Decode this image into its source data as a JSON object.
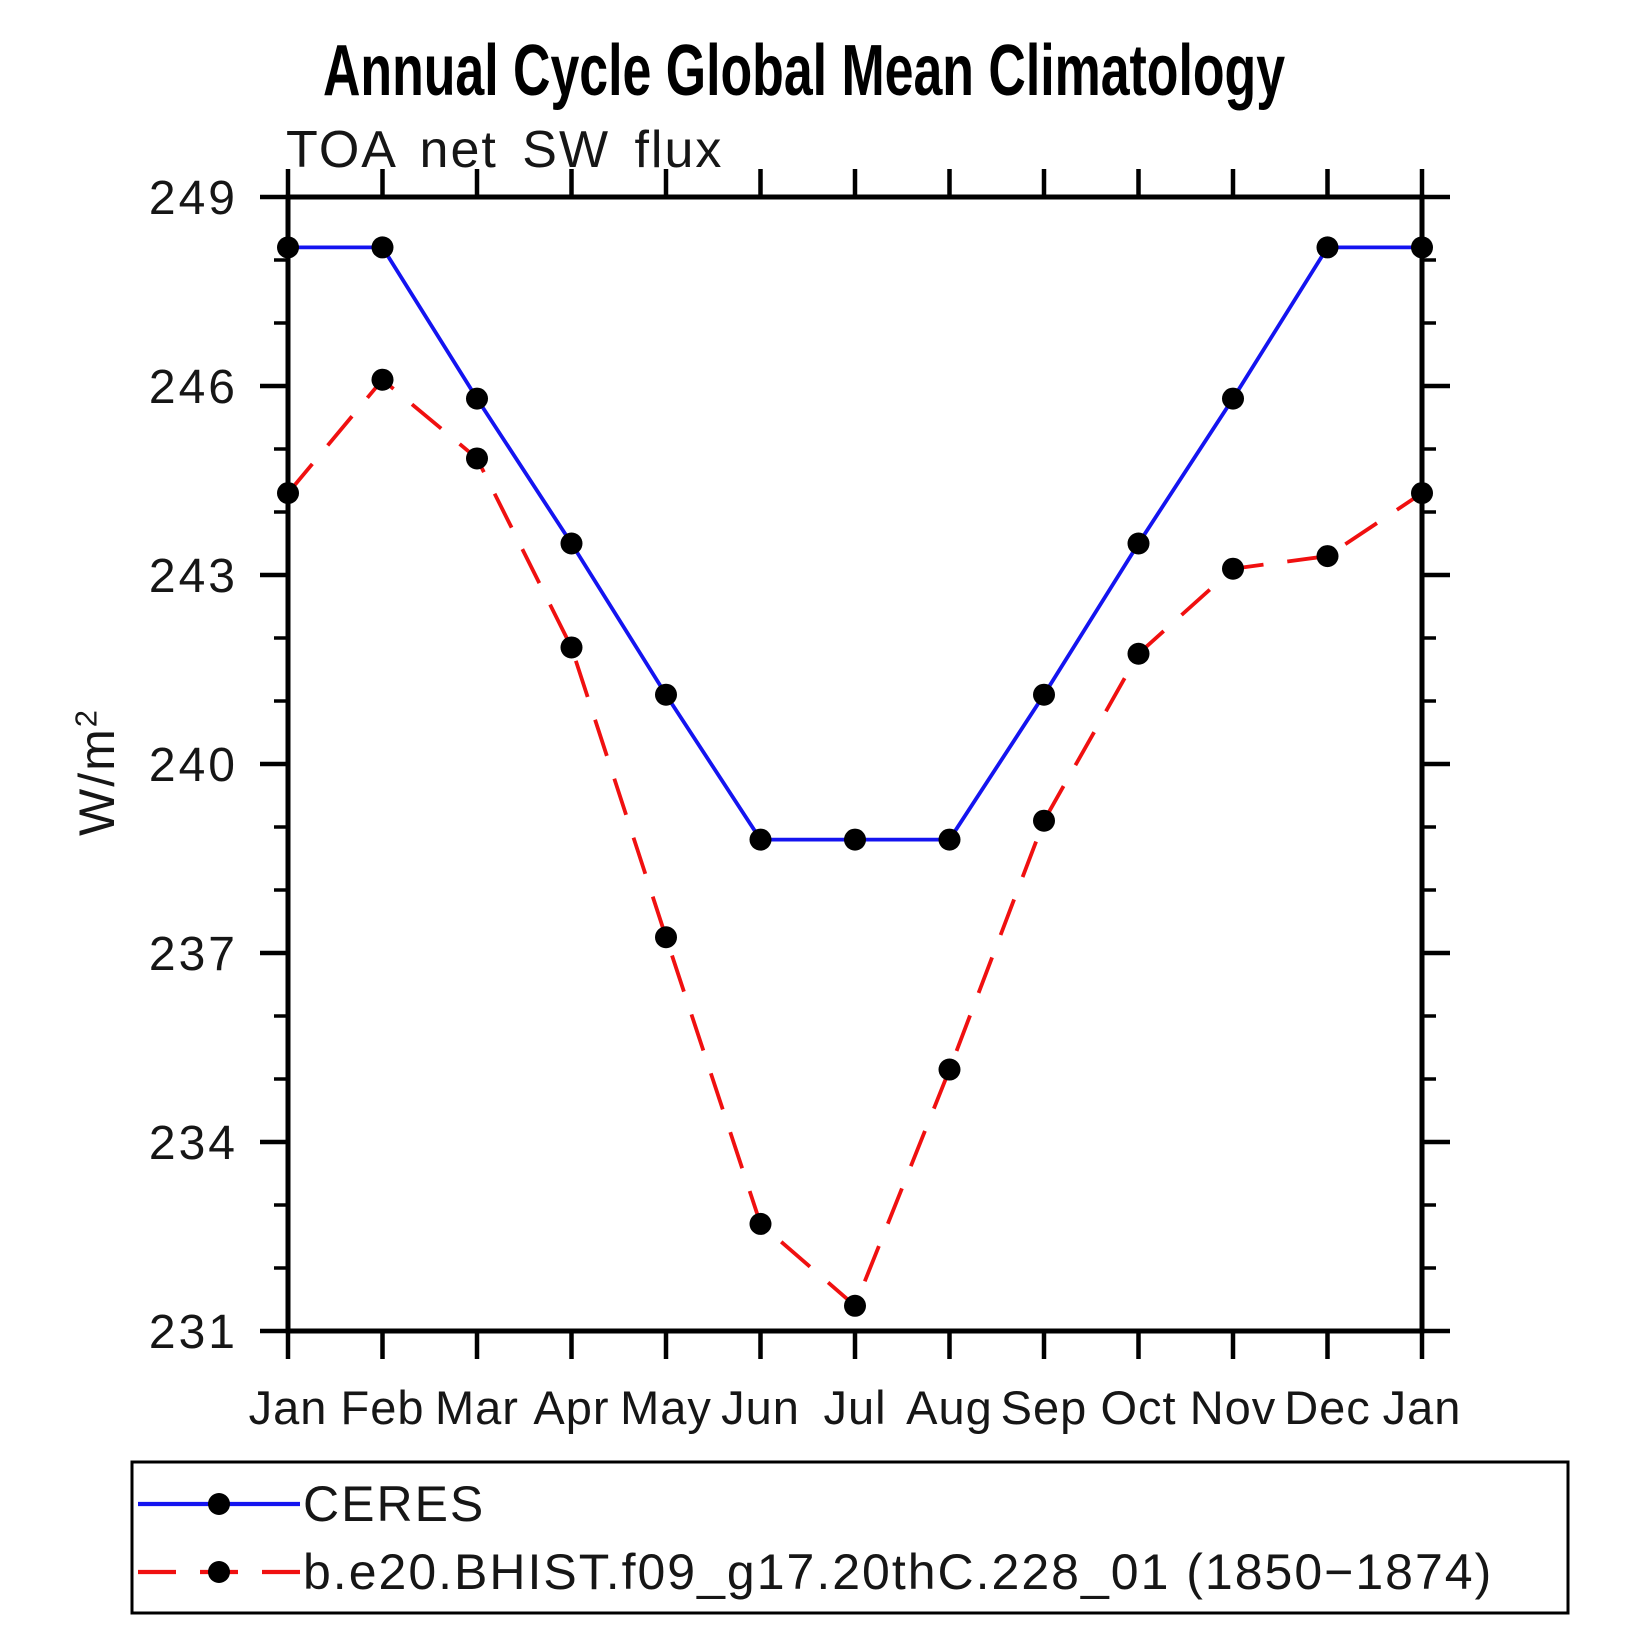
{
  "page": {
    "background": "#ffffff"
  },
  "chart_data": {
    "type": "line",
    "title": "Annual Cycle Global Mean Climatology",
    "subtitle": "TOA net SW flux",
    "ylabel": "W/m²",
    "ylabel_base": "W/m",
    "ylabel_sup": "2",
    "x_categories": [
      "Jan",
      "Feb",
      "Mar",
      "Apr",
      "May",
      "Jun",
      "Jul",
      "Aug",
      "Sep",
      "Oct",
      "Nov",
      "Dec",
      "Jan"
    ],
    "ylim": [
      231,
      249
    ],
    "y_ticks": [
      231,
      234,
      237,
      240,
      243,
      246,
      249
    ],
    "y_minor_step": 1,
    "grid": false,
    "legend_position": "bottom-left-box",
    "axis_color": "#000000",
    "marker_color": "#000000",
    "series": [
      {
        "name": "CERES",
        "color": "#1414f0",
        "style": "solid",
        "marker": "circle",
        "values": [
          248.2,
          248.2,
          245.8,
          243.5,
          241.1,
          238.8,
          238.8,
          238.8,
          241.1,
          243.5,
          245.8,
          248.2,
          248.2
        ]
      },
      {
        "name": "b.e20.BHIST.f09_g17.20thC.228_01 (1850−1874)",
        "color": "#f01010",
        "style": "dashed",
        "marker": "circle",
        "values": [
          244.3,
          246.1,
          244.85,
          241.85,
          237.25,
          232.7,
          231.4,
          235.15,
          239.1,
          241.75,
          243.1,
          243.3,
          244.3
        ]
      }
    ]
  }
}
